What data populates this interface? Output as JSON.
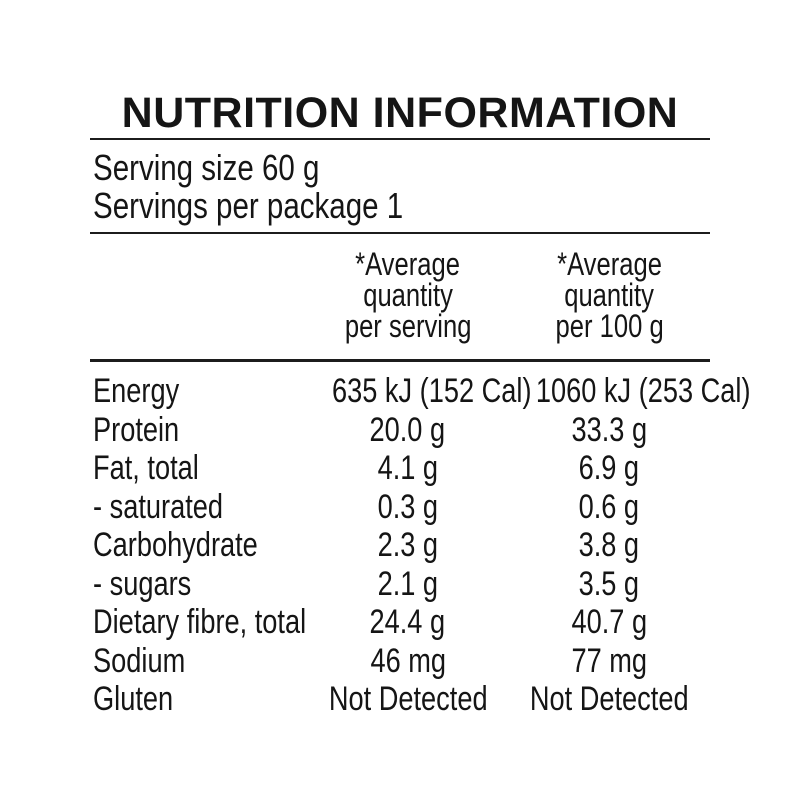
{
  "colors": {
    "text": "#151515",
    "background": "#ffffff",
    "rule": "#1c1c1c"
  },
  "panel": {
    "title": "NUTRITION INFORMATION",
    "serving_size": "Serving size 60 g",
    "servings_per_package": "Servings per package 1",
    "columns": {
      "per_serving": {
        "lines": [
          "*Average",
          "quantity",
          "per serving"
        ]
      },
      "per_100g": {
        "lines": [
          "*Average",
          "quantity",
          "per 100 g"
        ]
      }
    },
    "rows": [
      {
        "label": "Energy",
        "per_serving": "635 kJ (152 Cal)",
        "per_100g": "1060 kJ (253 Cal)"
      },
      {
        "label": "Protein",
        "per_serving": "20.0 g",
        "per_100g": "33.3 g"
      },
      {
        "label": "Fat, total",
        "per_serving": "4.1 g",
        "per_100g": "6.9 g"
      },
      {
        "label": "- saturated",
        "per_serving": "0.3 g",
        "per_100g": "0.6 g"
      },
      {
        "label": "Carbohydrate",
        "per_serving": "2.3 g",
        "per_100g": "3.8 g"
      },
      {
        "label": "- sugars",
        "per_serving": "2.1 g",
        "per_100g": "3.5 g"
      },
      {
        "label": "Dietary fibre, total",
        "per_serving": "24.4 g",
        "per_100g": "40.7 g"
      },
      {
        "label": "Sodium",
        "per_serving": "46 mg",
        "per_100g": "77 mg"
      },
      {
        "label": "Gluten",
        "per_serving": "Not Detected",
        "per_100g": "Not Detected"
      }
    ]
  }
}
